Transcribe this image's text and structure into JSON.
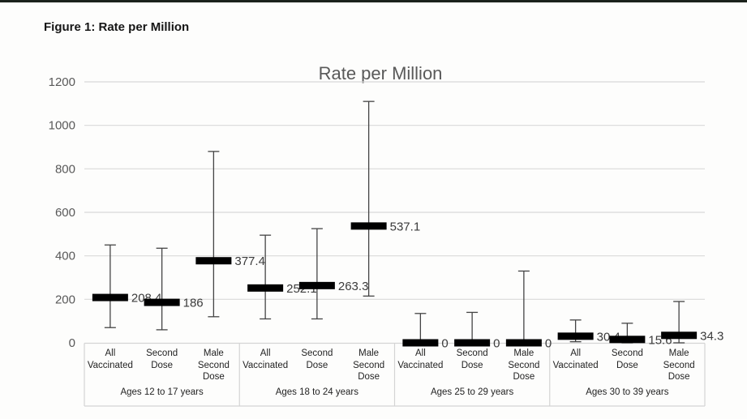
{
  "page": {
    "figure_heading": "Figure 1: Rate per Million",
    "background_color": "#fdfdfc",
    "scan_line_color": "#1b221c"
  },
  "chart_data": {
    "type": "scatter",
    "subtype": "point-estimates-with-error-bars",
    "title": "Rate per Million",
    "xlabel": "",
    "ylabel": "",
    "ylim": [
      0,
      1200
    ],
    "yticks": [
      0,
      200,
      400,
      600,
      800,
      1000,
      1200
    ],
    "grid": true,
    "legend_position": "none",
    "marker_color": "#000000",
    "whisker_color": "#444444",
    "gridline_color": "#d9d9d9",
    "box_border_color": "#d4d4d4",
    "axis_tick_color": "#595959",
    "title_color": "#595959",
    "data_label_color": "#3b3b3b",
    "groups": [
      {
        "label": "Ages 12 to 17 years",
        "points": [
          {
            "category": "All Vaccinated",
            "value": 208.4,
            "value_label": "208.4",
            "ci_low": 70,
            "ci_high": 450
          },
          {
            "category": "Second Dose",
            "value": 186,
            "value_label": "186",
            "ci_low": 60,
            "ci_high": 435
          },
          {
            "category": "Male Second Dose",
            "value": 377.4,
            "value_label": "377.4",
            "ci_low": 120,
            "ci_high": 880
          }
        ]
      },
      {
        "label": "Ages 18 to 24 years",
        "points": [
          {
            "category": "All Vaccinated",
            "value": 252.1,
            "value_label": "252.1",
            "ci_low": 110,
            "ci_high": 495
          },
          {
            "category": "Second Dose",
            "value": 263.3,
            "value_label": "263.3",
            "ci_low": 110,
            "ci_high": 525
          },
          {
            "category": "Male Second Dose",
            "value": 537.1,
            "value_label": "537.1",
            "ci_low": 215,
            "ci_high": 1110
          }
        ]
      },
      {
        "label": "Ages 25 to 29 years",
        "points": [
          {
            "category": "All Vaccinated",
            "value": 0,
            "value_label": "0",
            "ci_low": 0,
            "ci_high": 135
          },
          {
            "category": "Second Dose",
            "value": 0,
            "value_label": "0",
            "ci_low": 0,
            "ci_high": 140
          },
          {
            "category": "Male Second Dose",
            "value": 0,
            "value_label": "0",
            "ci_low": 0,
            "ci_high": 330
          }
        ]
      },
      {
        "label": "Ages 30 to 39 years",
        "points": [
          {
            "category": "All Vaccinated",
            "value": 30.4,
            "value_label": "30.4",
            "ci_low": 5,
            "ci_high": 105
          },
          {
            "category": "Second Dose",
            "value": 15.6,
            "value_label": "15.6",
            "ci_low": 0,
            "ci_high": 90
          },
          {
            "category": "Male Second Dose",
            "value": 34.3,
            "value_label": "34.3",
            "ci_low": 0,
            "ci_high": 190
          }
        ]
      }
    ]
  }
}
